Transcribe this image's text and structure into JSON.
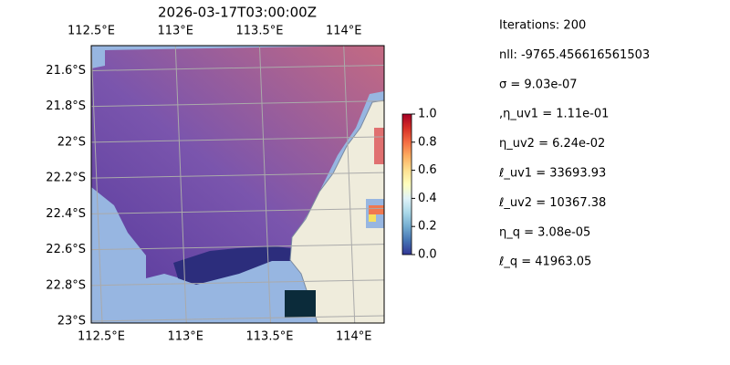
{
  "title": "2026-03-17T03:00:00Z",
  "map": {
    "xlim": [
      112.5,
      114.24
    ],
    "ylim": [
      -21.46,
      -23.01
    ],
    "xticks": [
      {
        "value": 112.5,
        "label": "112.5°E"
      },
      {
        "value": 113,
        "label": "113°E"
      },
      {
        "value": 113.5,
        "label": "113.5°E"
      },
      {
        "value": 114,
        "label": "114°E"
      }
    ],
    "yticks": [
      {
        "value": -21.6,
        "label": "21.6°S"
      },
      {
        "value": -21.8,
        "label": "21.8°S"
      },
      {
        "value": -22,
        "label": "22°S"
      },
      {
        "value": -22.2,
        "label": "22.2°S"
      },
      {
        "value": -22.4,
        "label": "22.4°S"
      },
      {
        "value": -22.6,
        "label": "22.6°S"
      },
      {
        "value": -22.8,
        "label": "22.8°S"
      },
      {
        "value": -23,
        "label": "23°S"
      }
    ]
  },
  "colorbar": {
    "lim": [
      0,
      1
    ],
    "ticks": [
      {
        "value": 0,
        "label": "0.0"
      },
      {
        "value": 0.2,
        "label": "0.2"
      },
      {
        "value": 0.4,
        "label": "0.4"
      },
      {
        "value": 0.6,
        "label": "0.6"
      },
      {
        "value": 0.8,
        "label": "0.8"
      },
      {
        "value": 1,
        "label": "1.0"
      }
    ]
  },
  "info": [
    "Iterations: 200",
    "nll: -9765.456616561503",
    "σ = 9.03e-07",
    ",η_uv1 = 1.11e-01",
    "η_uv2 = 6.24e-02",
    "ℓ_uv1 = 33693.93",
    "ℓ_uv2 = 10367.38",
    "η_q = 3.08e-05",
    "ℓ_q = 41963.05"
  ]
}
